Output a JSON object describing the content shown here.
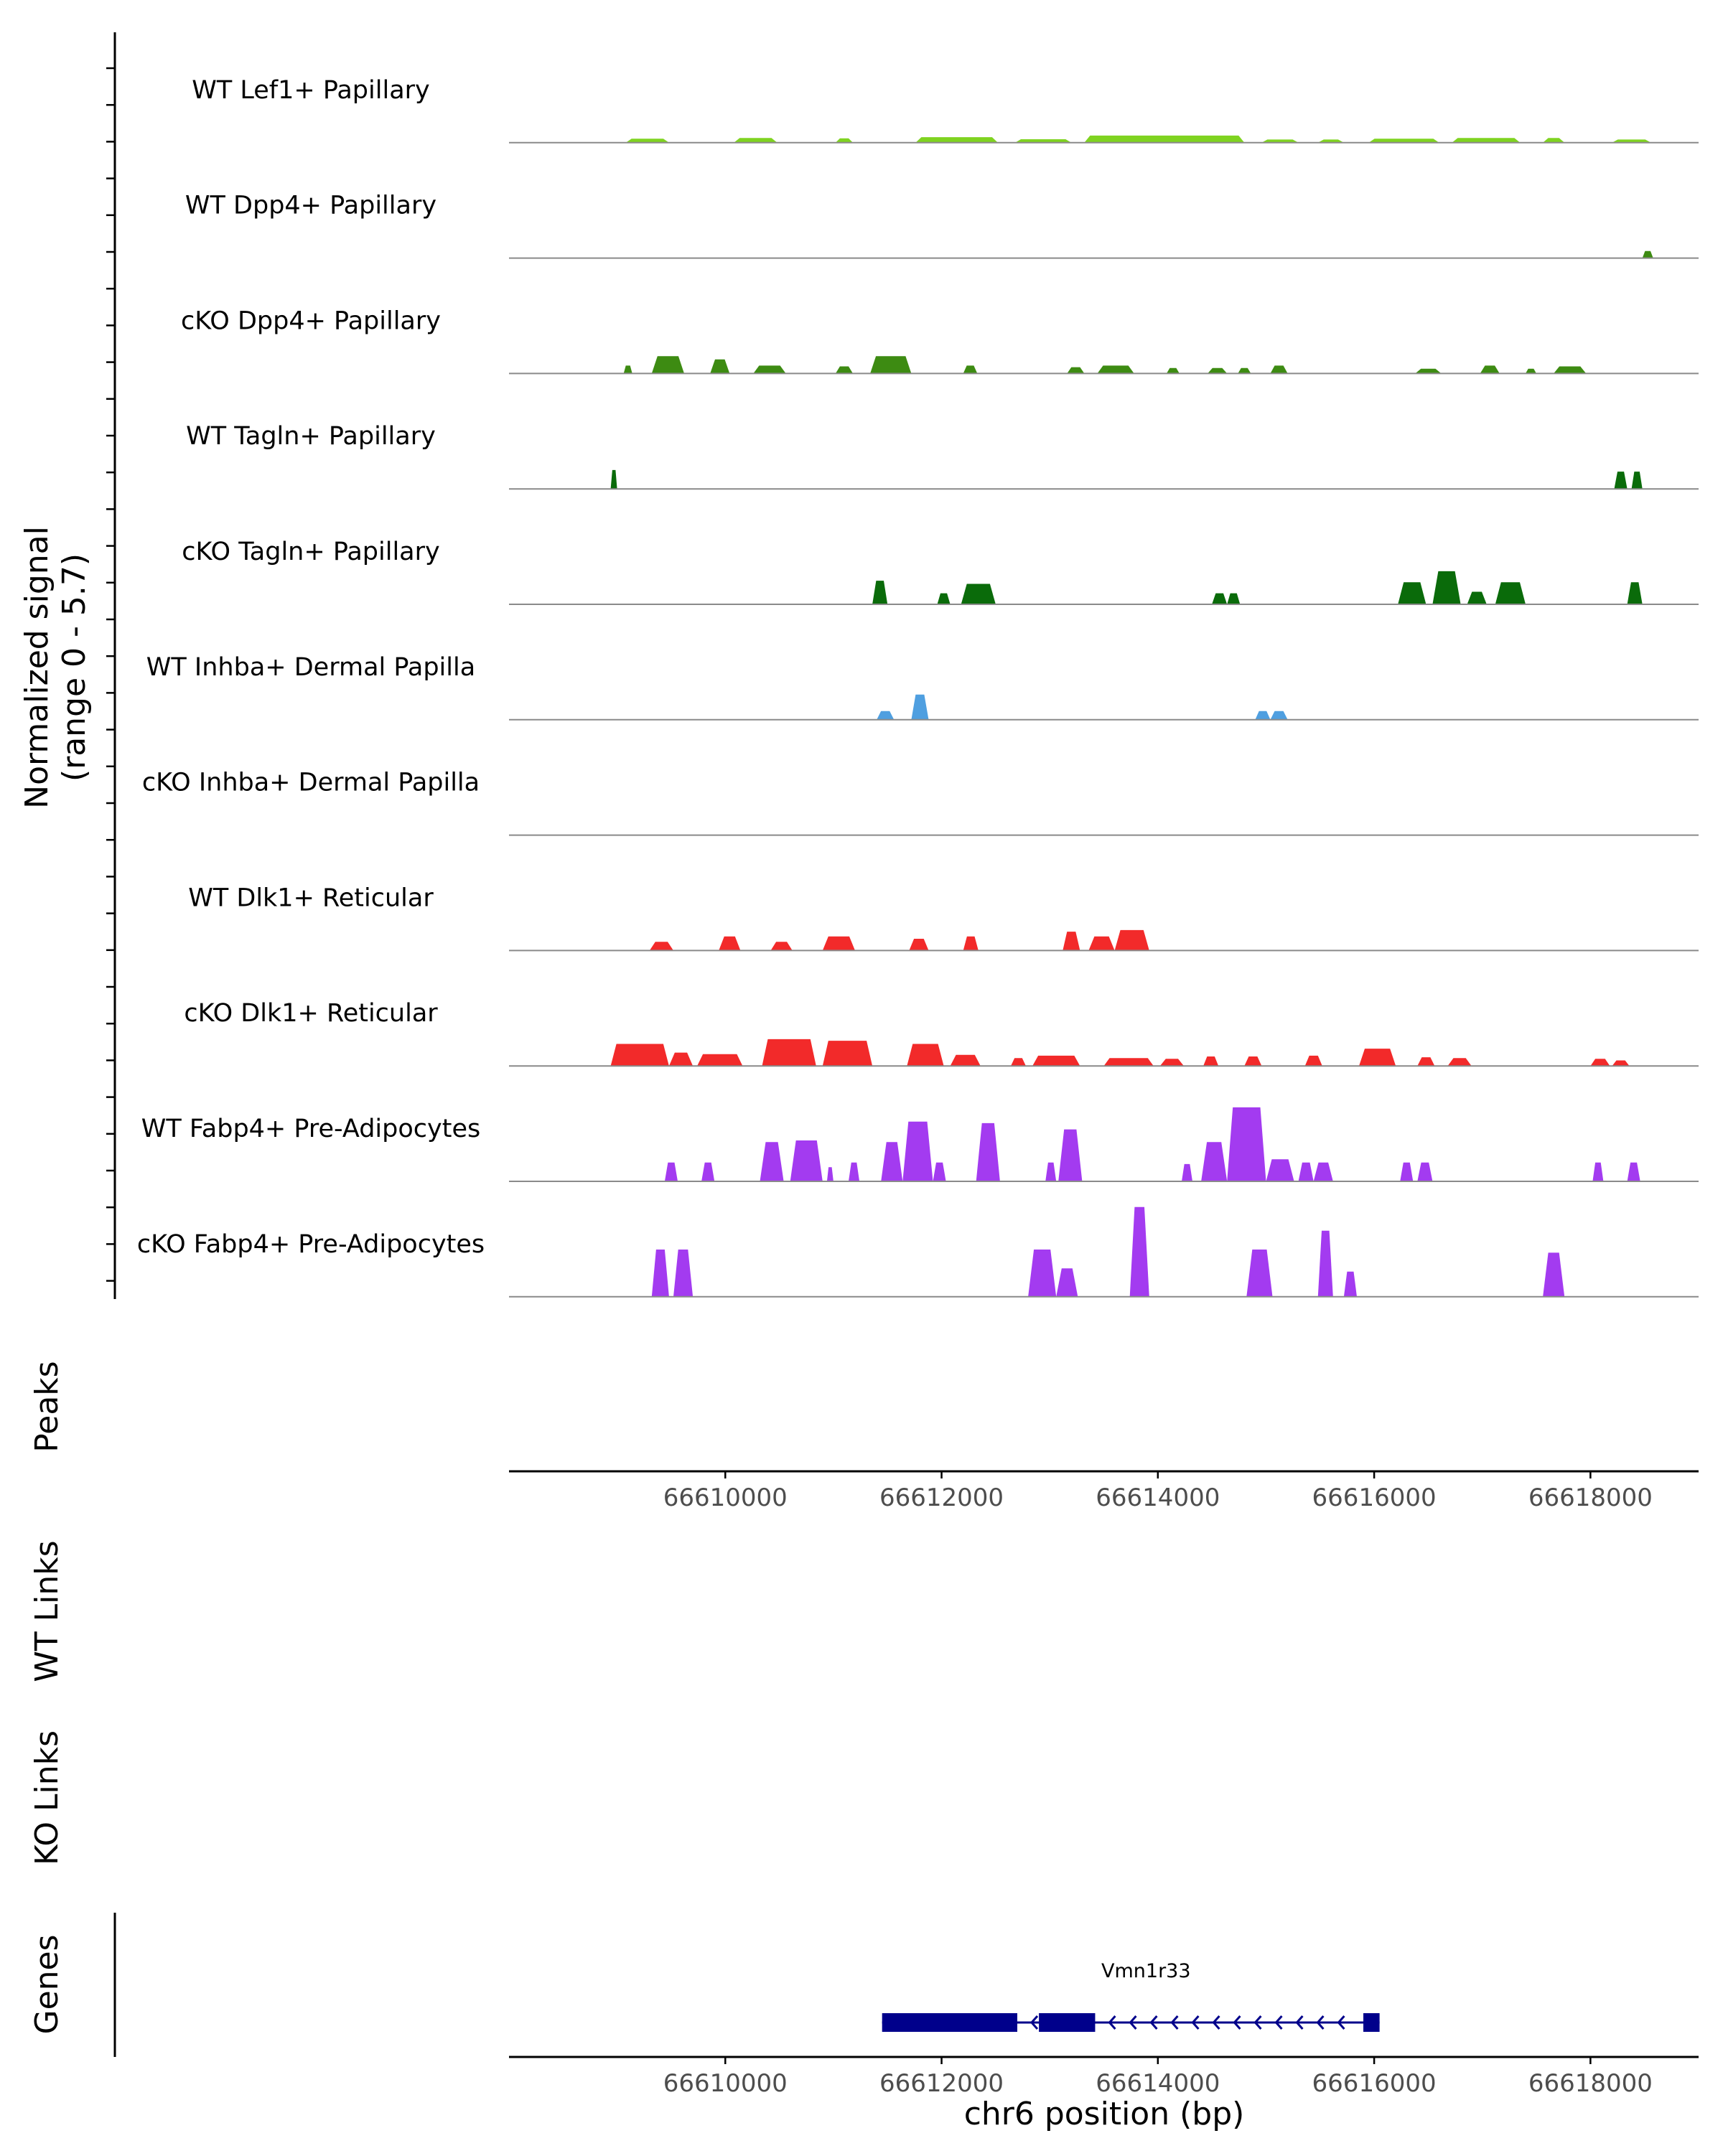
{
  "colors": {
    "lef1": "#7fd320",
    "dpp4": "#3d8b12",
    "tagln": "#0a6b0a",
    "inhba": "#4f9fe0",
    "dlk1": "#f22a2a",
    "fabp4": "#a33bf0",
    "gene": "#00008b",
    "baseline": "#8a8a8a",
    "axis": "#000000"
  },
  "chart_data": {
    "type": "area",
    "title": "",
    "xlabel": "chr6 position (bp)",
    "ylabel": "Normalized signal",
    "ylabel_range": "(range 0 - 5.7)",
    "xlim": [
      66608000,
      66619000
    ],
    "ylim": [
      0,
      5.7
    ],
    "x_ticks": [
      66610000,
      66612000,
      66614000,
      66616000,
      66618000
    ],
    "x_tick_labels": [
      "66610000",
      "66612000",
      "66614000",
      "66616000",
      "66618000"
    ],
    "tracks": [
      {
        "name": "WT Lef1+ Papillary",
        "color_key": "lef1",
        "peaks": [
          [
            66609080,
            66609480,
            0.25
          ],
          [
            66610080,
            66610480,
            0.3
          ],
          [
            66611020,
            66611180,
            0.28
          ],
          [
            66611760,
            66612520,
            0.35
          ],
          [
            66612680,
            66613200,
            0.22
          ],
          [
            66613320,
            66614800,
            0.45
          ],
          [
            66614960,
            66615300,
            0.2
          ],
          [
            66615480,
            66615720,
            0.2
          ],
          [
            66615950,
            66616600,
            0.25
          ],
          [
            66616720,
            66617350,
            0.3
          ],
          [
            66617560,
            66617760,
            0.3
          ],
          [
            66618200,
            66618560,
            0.2
          ]
        ]
      },
      {
        "name": "WT Dpp4+ Papillary",
        "color_key": "dpp4",
        "peaks": [
          [
            66618480,
            66618580,
            0.45
          ]
        ]
      },
      {
        "name": "cKO Dpp4+ Papillary",
        "color_key": "dpp4",
        "peaks": [
          [
            66609060,
            66609140,
            0.5
          ],
          [
            66609320,
            66609620,
            1.1
          ],
          [
            66609860,
            66610040,
            0.9
          ],
          [
            66610260,
            66610560,
            0.5
          ],
          [
            66611020,
            66611180,
            0.45
          ],
          [
            66611340,
            66611720,
            1.1
          ],
          [
            66612200,
            66612330,
            0.5
          ],
          [
            66613160,
            66613320,
            0.4
          ],
          [
            66613440,
            66613780,
            0.5
          ],
          [
            66614080,
            66614200,
            0.35
          ],
          [
            66614460,
            66614640,
            0.35
          ],
          [
            66614740,
            66614860,
            0.35
          ],
          [
            66615040,
            66615200,
            0.5
          ],
          [
            66616380,
            66616620,
            0.3
          ],
          [
            66616980,
            66617160,
            0.5
          ],
          [
            66617400,
            66617500,
            0.3
          ],
          [
            66617660,
            66617960,
            0.45
          ]
        ]
      },
      {
        "name": "WT Tagln+ Papillary",
        "color_key": "tagln",
        "peaks": [
          [
            66608940,
            66609000,
            1.2
          ],
          [
            66618220,
            66618340,
            1.1
          ],
          [
            66618380,
            66618480,
            1.1
          ]
        ]
      },
      {
        "name": "cKO Tagln+ Papillary",
        "color_key": "tagln",
        "peaks": [
          [
            66611360,
            66611500,
            1.5
          ],
          [
            66611960,
            66612080,
            0.7
          ],
          [
            66612180,
            66612500,
            1.3
          ],
          [
            66614500,
            66614640,
            0.7
          ],
          [
            66614640,
            66614760,
            0.7
          ],
          [
            66616220,
            66616480,
            1.4
          ],
          [
            66616540,
            66616800,
            2.1
          ],
          [
            66616860,
            66617040,
            0.8
          ],
          [
            66617120,
            66617400,
            1.4
          ],
          [
            66618340,
            66618480,
            1.4
          ]
        ]
      },
      {
        "name": "WT Inhba+ Dermal Papilla",
        "color_key": "inhba",
        "peaks": [
          [
            66611400,
            66611560,
            0.55
          ],
          [
            66611720,
            66611880,
            1.6
          ],
          [
            66614900,
            66615040,
            0.55
          ],
          [
            66615040,
            66615200,
            0.55
          ]
        ]
      },
      {
        "name": "cKO Inhba+ Dermal Papilla",
        "color_key": "inhba",
        "peaks": []
      },
      {
        "name": "WT Dlk1+ Reticular",
        "color_key": "dlk1",
        "peaks": [
          [
            66609300,
            66609520,
            0.55
          ],
          [
            66609940,
            66610140,
            0.9
          ],
          [
            66610420,
            66610620,
            0.55
          ],
          [
            66610900,
            66611200,
            0.9
          ],
          [
            66611700,
            66611880,
            0.75
          ],
          [
            66612200,
            66612340,
            0.9
          ],
          [
            66613120,
            66613280,
            1.2
          ],
          [
            66613360,
            66613600,
            0.9
          ],
          [
            66613600,
            66613920,
            1.3
          ]
        ]
      },
      {
        "name": "cKO Dlk1+ Reticular",
        "color_key": "dlk1",
        "peaks": [
          [
            66608940,
            66609480,
            1.4
          ],
          [
            66609480,
            66609700,
            0.85
          ],
          [
            66609740,
            66610160,
            0.75
          ],
          [
            66610340,
            66610840,
            1.7
          ],
          [
            66610900,
            66611360,
            1.6
          ],
          [
            66611680,
            66612020,
            1.4
          ],
          [
            66612080,
            66612360,
            0.7
          ],
          [
            66612640,
            66612780,
            0.5
          ],
          [
            66612840,
            66613280,
            0.65
          ],
          [
            66613500,
            66613960,
            0.5
          ],
          [
            66614020,
            66614240,
            0.45
          ],
          [
            66614420,
            66614560,
            0.6
          ],
          [
            66614800,
            66614960,
            0.6
          ],
          [
            66615360,
            66615520,
            0.65
          ],
          [
            66615860,
            66616200,
            1.1
          ],
          [
            66616400,
            66616560,
            0.55
          ],
          [
            66616680,
            66616900,
            0.5
          ],
          [
            66618000,
            66618180,
            0.45
          ],
          [
            66618200,
            66618360,
            0.35
          ]
        ]
      },
      {
        "name": "WT Fabp4+ Pre-Adipocytes",
        "color_key": "fabp4",
        "peaks": [
          [
            66609440,
            66609560,
            1.2
          ],
          [
            66609780,
            66609900,
            1.2
          ],
          [
            66610320,
            66610540,
            2.5
          ],
          [
            66610600,
            66610900,
            2.6
          ],
          [
            66610940,
            66611000,
            0.9
          ],
          [
            66611140,
            66611240,
            1.2
          ],
          [
            66611440,
            66611640,
            2.5
          ],
          [
            66611640,
            66611920,
            3.8
          ],
          [
            66611920,
            66612040,
            1.2
          ],
          [
            66612320,
            66612540,
            3.7
          ],
          [
            66612960,
            66613060,
            1.2
          ],
          [
            66613080,
            66613300,
            3.3
          ],
          [
            66614220,
            66614320,
            1.1
          ],
          [
            66614400,
            66614640,
            2.5
          ],
          [
            66614640,
            66615000,
            4.7
          ],
          [
            66615000,
            66615260,
            1.4
          ],
          [
            66615300,
            66615440,
            1.2
          ],
          [
            66615440,
            66615620,
            1.2
          ],
          [
            66616240,
            66616360,
            1.2
          ],
          [
            66616400,
            66616540,
            1.2
          ],
          [
            66618020,
            66618120,
            1.2
          ],
          [
            66618340,
            66618460,
            1.2
          ]
        ]
      },
      {
        "name": "cKO Fabp4+ Pre-Adipocytes",
        "color_key": "fabp4",
        "peaks": [
          [
            66609320,
            66609480,
            3.0
          ],
          [
            66609520,
            66609700,
            3.0
          ],
          [
            66612800,
            66613060,
            3.0
          ],
          [
            66613060,
            66613260,
            1.8
          ],
          [
            66613740,
            66613920,
            5.7
          ],
          [
            66614820,
            66615060,
            3.0
          ],
          [
            66615480,
            66615620,
            4.2
          ],
          [
            66615720,
            66615840,
            1.6
          ],
          [
            66617560,
            66617760,
            2.8
          ]
        ]
      }
    ],
    "side_panels": [
      "Peaks",
      "WT Links",
      "KO Links",
      "Genes"
    ],
    "genes": [
      {
        "name": "Vmn1r33",
        "start": 66611450,
        "end": 66616050,
        "strand": "-",
        "exons": [
          [
            66611450,
            66612700
          ],
          [
            66612900,
            66613420
          ],
          [
            66615900,
            66616050
          ]
        ]
      }
    ]
  }
}
